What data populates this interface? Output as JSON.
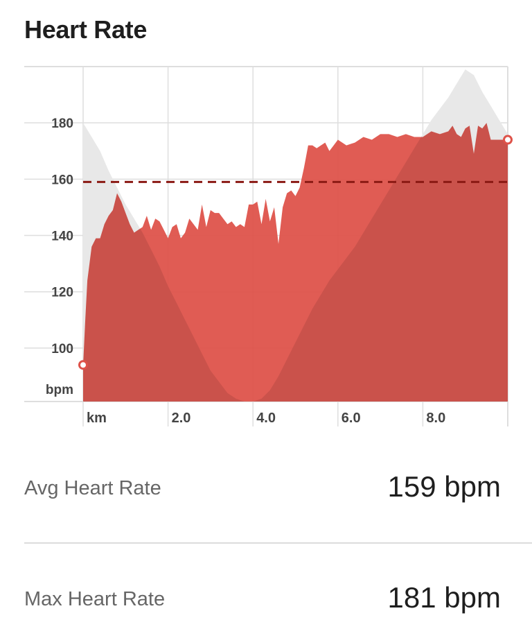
{
  "title": "Heart Rate",
  "chart_data": {
    "type": "area",
    "ylabel": "bpm",
    "xlabel": "km",
    "xlim": [
      0,
      10
    ],
    "ylim": [
      81,
      200
    ],
    "y_ticks": [
      "100",
      "120",
      "140",
      "160",
      "180"
    ],
    "x_ticks": [
      "km",
      "2.0",
      "4.0",
      "6.0",
      "8.0"
    ],
    "average_line": 159,
    "colors": {
      "hr_fill": "#de5249",
      "elevation_fill": "#e8e8e8",
      "avg_line": "#8b1a14",
      "grid": "#dedede"
    },
    "series": [
      {
        "x": [
          0,
          0.05,
          0.1,
          0.15,
          0.2,
          0.3,
          0.4,
          0.5,
          0.6,
          0.7,
          0.8,
          0.9,
          1.0,
          1.1,
          1.2,
          1.3,
          1.4,
          1.5,
          1.6,
          1.7,
          1.8,
          1.9,
          2.0,
          2.1,
          2.2,
          2.3,
          2.4,
          2.5,
          2.6,
          2.7,
          2.8,
          2.9,
          3.0,
          3.1,
          3.2,
          3.3,
          3.4,
          3.5,
          3.6,
          3.7,
          3.8,
          3.9,
          4.0,
          4.1,
          4.2,
          4.3,
          4.4,
          4.5,
          4.6,
          4.7,
          4.8,
          4.9,
          5.0,
          5.1,
          5.2,
          5.3,
          5.4,
          5.5,
          5.6,
          5.7,
          5.8,
          5.9,
          6.0,
          6.2,
          6.4,
          6.6,
          6.8,
          7.0,
          7.2,
          7.4,
          7.6,
          7.8,
          8.0,
          8.2,
          8.4,
          8.6,
          8.7,
          8.8,
          8.9,
          9.0,
          9.1,
          9.2,
          9.3,
          9.4,
          9.5,
          9.6,
          9.7,
          9.8,
          9.9,
          10.0
        ],
        "values": [
          94,
          110,
          124,
          130,
          136,
          139,
          139,
          144,
          147,
          149,
          155,
          152,
          148,
          144,
          141,
          142,
          143,
          147,
          142,
          146,
          145,
          142,
          139,
          143,
          144,
          139,
          141,
          146,
          144,
          142,
          151,
          143,
          149,
          148,
          148,
          146,
          144,
          145,
          143,
          144,
          143,
          151,
          151,
          152,
          144,
          153,
          145,
          150,
          137,
          150,
          155,
          156,
          154,
          157,
          164,
          172,
          172,
          171,
          172,
          173,
          170,
          172,
          174,
          172,
          173,
          175,
          174,
          176,
          176,
          175,
          176,
          175,
          175,
          177,
          176,
          177,
          179,
          176,
          175,
          178,
          179,
          169,
          179,
          178,
          180,
          174,
          174,
          174,
          174,
          174
        ]
      },
      {
        "x": [
          0,
          0.2,
          0.4,
          0.6,
          0.8,
          1.0,
          1.2,
          1.4,
          1.6,
          1.8,
          2.0,
          2.2,
          2.4,
          2.6,
          2.8,
          3.0,
          3.2,
          3.4,
          3.6,
          3.8,
          4.0,
          4.2,
          4.4,
          4.6,
          4.8,
          5.0,
          5.2,
          5.4,
          5.6,
          5.8,
          6.0,
          6.2,
          6.4,
          6.6,
          6.8,
          7.0,
          7.2,
          7.4,
          7.6,
          7.8,
          8.0,
          8.2,
          8.4,
          8.6,
          8.8,
          9.0,
          9.2,
          9.4,
          9.6,
          9.8,
          10.0
        ],
        "values": [
          180,
          175,
          170,
          163,
          157,
          151,
          146,
          141,
          135,
          129,
          122,
          116,
          110,
          104,
          98,
          92,
          88,
          84,
          82,
          81,
          81,
          82,
          85,
          90,
          96,
          102,
          108,
          114,
          119,
          124,
          128,
          132,
          136,
          141,
          146,
          151,
          156,
          161,
          166,
          171,
          176,
          181,
          185,
          189,
          194,
          199,
          197,
          191,
          186,
          181,
          176
        ]
      }
    ]
  },
  "stats": {
    "avg_label": "Avg Heart Rate",
    "avg_value": "159 bpm",
    "max_label": "Max Heart Rate",
    "max_value": "181 bpm"
  }
}
